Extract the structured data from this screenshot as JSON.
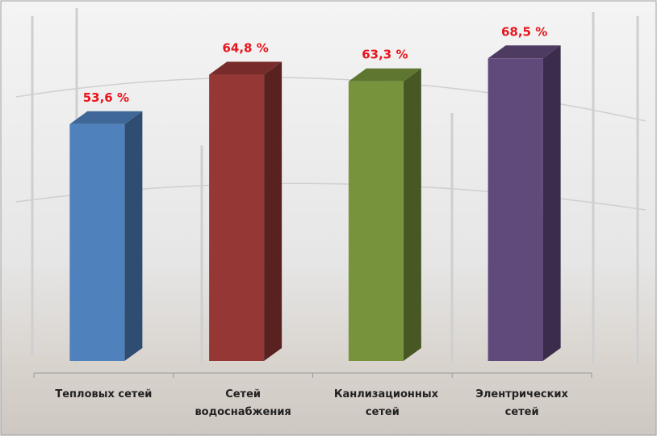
{
  "chart_data": {
    "type": "bar3d",
    "categories": [
      "Тепловых сетей",
      "Сетей водоснабжения",
      "Канлизационных сетей",
      "Элентрических сетей"
    ],
    "values": [
      53.6,
      64.8,
      63.3,
      68.5
    ],
    "value_labels": [
      "53,6 %",
      "64,8 %",
      "63,3 %",
      "68,5 %"
    ],
    "colors": [
      "#4f81bd",
      "#953735",
      "#77933c",
      "#604a7b"
    ]
  }
}
